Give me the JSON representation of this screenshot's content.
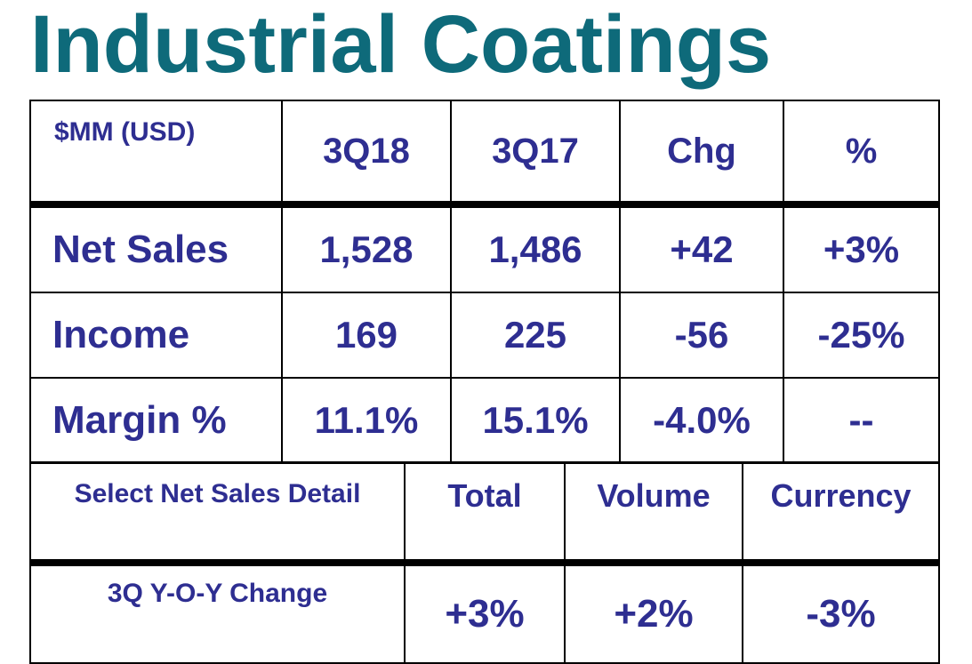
{
  "title": "Industrial Coatings",
  "summary_table": {
    "headers": [
      "$MM (USD)",
      "3Q18",
      "3Q17",
      "Chg",
      "%"
    ],
    "rows": [
      [
        "Net Sales",
        "1,528",
        "1,486",
        "+42",
        "+3%"
      ],
      [
        "Income",
        "169",
        "225",
        "-56",
        "-25%"
      ],
      [
        "Margin %",
        "11.1%",
        "15.1%",
        "-4.0%",
        "--"
      ]
    ]
  },
  "detail_table": {
    "headers": [
      "Select Net Sales Detail",
      "Total",
      "Volume",
      "Currency"
    ],
    "rows": [
      [
        "3Q Y-O-Y Change",
        "+3%",
        "+2%",
        "-3%"
      ]
    ]
  },
  "colors": {
    "title": "#0e6a7a",
    "text": "#2e2e91",
    "border": "#000000"
  }
}
